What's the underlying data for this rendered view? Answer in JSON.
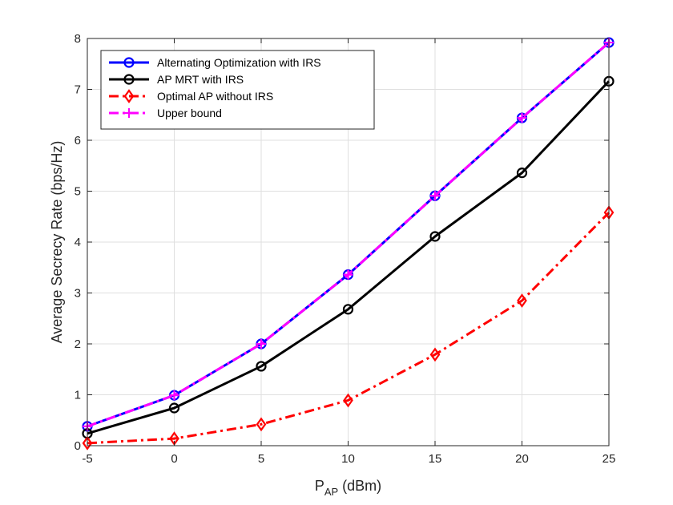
{
  "chart_data": {
    "type": "line",
    "title": "",
    "xlabel_main": "P",
    "xlabel_sub": "AP",
    "xlabel_unit": " (dBm)",
    "ylabel": "Average Secrecy Rate (bps/Hz)",
    "xlim": [
      -5,
      25
    ],
    "ylim": [
      0,
      8
    ],
    "xticks": [
      -5,
      0,
      5,
      10,
      15,
      20,
      25
    ],
    "yticks": [
      0,
      1,
      2,
      3,
      4,
      5,
      6,
      7,
      8
    ],
    "grid": true,
    "legend_position": "top-left",
    "x": [
      -5,
      0,
      5,
      10,
      15,
      20,
      25
    ],
    "series": [
      {
        "name": "Alternating Optimization with IRS",
        "values": [
          0.38,
          0.99,
          2.0,
          3.36,
          4.91,
          6.44,
          7.92
        ],
        "color": "#0000ff",
        "marker": "circle",
        "dash": "solid"
      },
      {
        "name": "AP MRT with IRS",
        "values": [
          0.24,
          0.74,
          1.56,
          2.68,
          4.11,
          5.36,
          7.16
        ],
        "color": "#000000",
        "marker": "circle",
        "dash": "solid"
      },
      {
        "name": "Optimal AP without IRS",
        "values": [
          0.05,
          0.14,
          0.42,
          0.89,
          1.79,
          2.85,
          4.58
        ],
        "color": "#ff0000",
        "marker": "diamond",
        "dash": "dashdot"
      },
      {
        "name": "Upper bound",
        "values": [
          0.38,
          0.99,
          2.0,
          3.36,
          4.91,
          6.44,
          7.92
        ],
        "color": "#ff00ff",
        "marker": "plus",
        "dash": "dashdot"
      }
    ]
  }
}
